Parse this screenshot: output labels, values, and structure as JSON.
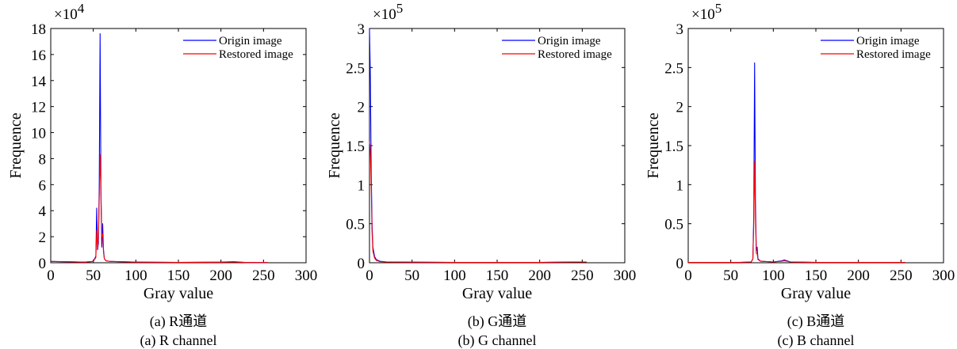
{
  "chart_data": [
    {
      "type": "line",
      "multiplier": "×10",
      "exponent": "4",
      "xlabel": "Gray value",
      "ylabel": "Frequence",
      "xlim": [
        0,
        300
      ],
      "ylim": [
        0,
        18
      ],
      "xticks": [
        "0",
        "50",
        "100",
        "150",
        "200",
        "250",
        "300"
      ],
      "yticks": [
        "0",
        "2",
        "4",
        "6",
        "8",
        "10",
        "12",
        "14",
        "16",
        "18"
      ],
      "legend_position": "top-right",
      "caption_cn": "(a) R通道",
      "caption_en": "(a) R channel",
      "series": [
        {
          "name": "Origin image",
          "color": "#0000ff",
          "points": [
            [
              0,
              0.1
            ],
            [
              40,
              0.05
            ],
            [
              50,
              0.1
            ],
            [
              53,
              0.5
            ],
            [
              54,
              4.2
            ],
            [
              55,
              1.0
            ],
            [
              56,
              1.5
            ],
            [
              57,
              6.0
            ],
            [
              58,
              17.6
            ],
            [
              59,
              5.0
            ],
            [
              60,
              1.2
            ],
            [
              61,
              3.0
            ],
            [
              62,
              1.0
            ],
            [
              63,
              0.3
            ],
            [
              65,
              0.15
            ],
            [
              70,
              0.1
            ],
            [
              100,
              0.05
            ],
            [
              150,
              0.03
            ],
            [
              200,
              0.05
            ],
            [
              215,
              0.08
            ],
            [
              230,
              0.02
            ],
            [
              255,
              0.02
            ]
          ]
        },
        {
          "name": "Restored image",
          "color": "#ff0000",
          "points": [
            [
              0,
              0.1
            ],
            [
              40,
              0.05
            ],
            [
              50,
              0.1
            ],
            [
              53,
              0.4
            ],
            [
              54,
              2.5
            ],
            [
              55,
              1.2
            ],
            [
              56,
              1.8
            ],
            [
              57,
              5.0
            ],
            [
              58,
              8.3
            ],
            [
              59,
              5.5
            ],
            [
              60,
              2.0
            ],
            [
              61,
              2.2
            ],
            [
              62,
              0.8
            ],
            [
              63,
              0.3
            ],
            [
              65,
              0.15
            ],
            [
              70,
              0.1
            ],
            [
              100,
              0.05
            ],
            [
              150,
              0.03
            ],
            [
              200,
              0.04
            ],
            [
              215,
              0.06
            ],
            [
              230,
              0.02
            ],
            [
              255,
              0.02
            ]
          ]
        }
      ]
    },
    {
      "type": "line",
      "multiplier": "×10",
      "exponent": "5",
      "xlabel": "Gray value",
      "ylabel": "Frequence",
      "xlim": [
        0,
        300
      ],
      "ylim": [
        0,
        3
      ],
      "xticks": [
        "0",
        "50",
        "100",
        "150",
        "200",
        "250",
        "300"
      ],
      "yticks": [
        "0",
        "0.5",
        "1",
        "1.5",
        "2",
        "2.5",
        "3"
      ],
      "legend_position": "top-right",
      "caption_cn": "(b) G通道",
      "caption_en": "(b) G channel",
      "series": [
        {
          "name": "Origin image",
          "color": "#0000ff",
          "points": [
            [
              0,
              3.0
            ],
            [
              1,
              2.4
            ],
            [
              2,
              1.2
            ],
            [
              3,
              0.5
            ],
            [
              4,
              0.2
            ],
            [
              6,
              0.08
            ],
            [
              8,
              0.04
            ],
            [
              12,
              0.02
            ],
            [
              20,
              0.01
            ],
            [
              100,
              0.005
            ],
            [
              200,
              0.005
            ],
            [
              240,
              0.01
            ],
            [
              255,
              0.01
            ]
          ]
        },
        {
          "name": "Restored image",
          "color": "#ff0000",
          "points": [
            [
              0,
              1.55
            ],
            [
              1,
              1.45
            ],
            [
              2,
              1.0
            ],
            [
              3,
              0.4
            ],
            [
              4,
              0.15
            ],
            [
              6,
              0.06
            ],
            [
              8,
              0.03
            ],
            [
              12,
              0.015
            ],
            [
              20,
              0.01
            ],
            [
              100,
              0.005
            ],
            [
              200,
              0.005
            ],
            [
              240,
              0.01
            ],
            [
              255,
              0.01
            ]
          ]
        }
      ]
    },
    {
      "type": "line",
      "multiplier": "×10",
      "exponent": "5",
      "xlabel": "Gray value",
      "ylabel": "Frequence",
      "xlim": [
        0,
        300
      ],
      "ylim": [
        0,
        3
      ],
      "xticks": [
        "0",
        "50",
        "100",
        "150",
        "200",
        "250",
        "300"
      ],
      "yticks": [
        "0",
        "0.5",
        "1",
        "1.5",
        "2",
        "2.5",
        "3"
      ],
      "legend_position": "top-right",
      "caption_cn": "(c) B通道",
      "caption_en": "(c) B channel",
      "series": [
        {
          "name": "Origin image",
          "color": "#0000ff",
          "points": [
            [
              0,
              0.005
            ],
            [
              60,
              0.005
            ],
            [
              74,
              0.01
            ],
            [
              76,
              0.05
            ],
            [
              77,
              0.6
            ],
            [
              78,
              2.56
            ],
            [
              79,
              0.8
            ],
            [
              80,
              0.15
            ],
            [
              81,
              0.2
            ],
            [
              82,
              0.05
            ],
            [
              85,
              0.02
            ],
            [
              100,
              0.01
            ],
            [
              110,
              0.025
            ],
            [
              113,
              0.035
            ],
            [
              116,
              0.025
            ],
            [
              120,
              0.01
            ],
            [
              150,
              0.005
            ],
            [
              255,
              0.005
            ]
          ]
        },
        {
          "name": "Restored image",
          "color": "#ff0000",
          "points": [
            [
              0,
              0.005
            ],
            [
              60,
              0.005
            ],
            [
              74,
              0.01
            ],
            [
              76,
              0.05
            ],
            [
              77,
              0.5
            ],
            [
              78,
              1.3
            ],
            [
              79,
              0.6
            ],
            [
              80,
              0.12
            ],
            [
              81,
              0.12
            ],
            [
              82,
              0.04
            ],
            [
              85,
              0.02
            ],
            [
              100,
              0.01
            ],
            [
              110,
              0.02
            ],
            [
              113,
              0.025
            ],
            [
              116,
              0.02
            ],
            [
              120,
              0.01
            ],
            [
              150,
              0.005
            ],
            [
              255,
              0.005
            ]
          ]
        }
      ]
    }
  ]
}
